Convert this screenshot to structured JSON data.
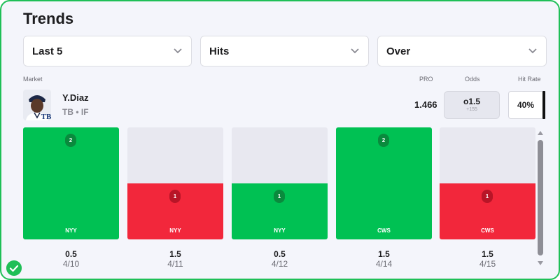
{
  "title": "Trends",
  "filters": {
    "range": "Last 5",
    "stat": "Hits",
    "direction": "Over"
  },
  "headers": {
    "market": "Market",
    "pro": "PRO",
    "odds": "Odds",
    "hit_rate": "Hit Rate"
  },
  "player": {
    "name": "Y.Diaz",
    "team_pos": "TB • IF",
    "team_logo": "TB"
  },
  "pro_value": "1.466",
  "odds": {
    "line": "o1.5",
    "price": "+155"
  },
  "hit_rate": "40%",
  "games": [
    {
      "opponent": "NYY",
      "value": "2",
      "hits": 2,
      "result": "over",
      "line": "0.5",
      "date": "4/10"
    },
    {
      "opponent": "NYY",
      "value": "1",
      "hits": 1,
      "result": "under",
      "line": "1.5",
      "date": "4/11"
    },
    {
      "opponent": "NYY",
      "value": "1",
      "hits": 1,
      "result": "over",
      "line": "0.5",
      "date": "4/12"
    },
    {
      "opponent": "CWS",
      "value": "2",
      "hits": 2,
      "result": "over",
      "line": "1.5",
      "date": "4/14"
    },
    {
      "opponent": "CWS",
      "value": "1",
      "hits": 1,
      "result": "under",
      "line": "1.5",
      "date": "4/15"
    }
  ],
  "colors": {
    "over": "#00c153",
    "under": "#f2273b",
    "frame": "#1fbf57"
  },
  "icons": {
    "dropdown": "chevron-down-icon",
    "status": "check-icon"
  }
}
